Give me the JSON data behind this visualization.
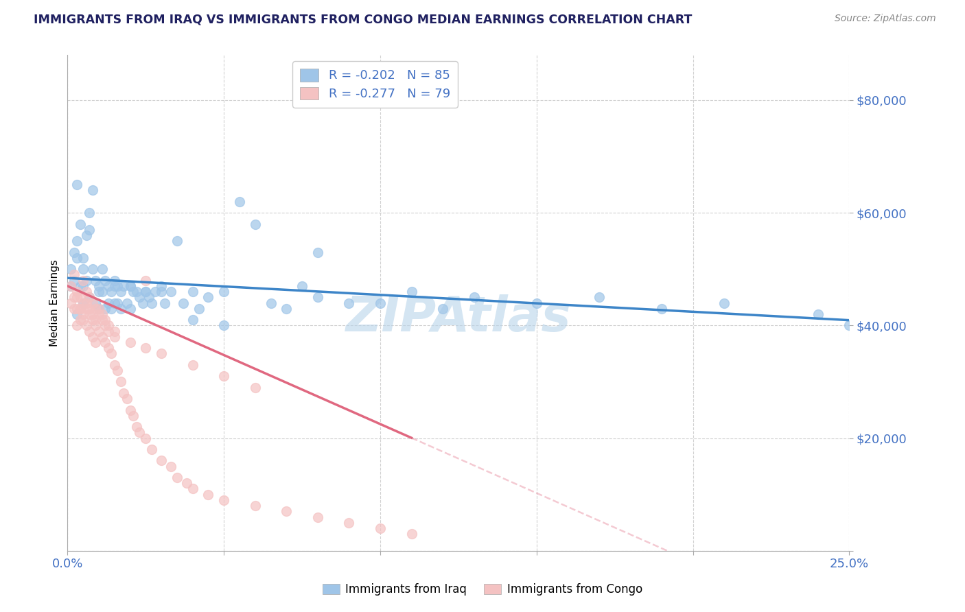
{
  "title": "IMMIGRANTS FROM IRAQ VS IMMIGRANTS FROM CONGO MEDIAN EARNINGS CORRELATION CHART",
  "source": "Source: ZipAtlas.com",
  "ylabel": "Median Earnings",
  "iraq_color": "#9fc5e8",
  "congo_color": "#f4c2c2",
  "iraq_R": -0.202,
  "iraq_N": 85,
  "congo_R": -0.277,
  "congo_N": 79,
  "watermark": "ZIPAtlas",
  "watermark_color": "#b8d4ea",
  "trend_iraq_color": "#3d85c8",
  "trend_congo_color": "#e06880",
  "axis_color": "#4472c4",
  "legend_label_iraq": "Immigrants from Iraq",
  "legend_label_congo": "Immigrants from Congo",
  "xlim": [
    0.0,
    0.25
  ],
  "ylim": [
    0,
    88000
  ],
  "ytick_vals": [
    0,
    20000,
    40000,
    60000,
    80000
  ],
  "ytick_labels": [
    "",
    "$20,000",
    "$40,000",
    "$60,000",
    "$80,000"
  ],
  "xtick_vals": [
    0.0,
    0.05,
    0.1,
    0.15,
    0.2,
    0.25
  ],
  "xtick_labels": [
    "0.0%",
    "",
    "",
    "",
    "",
    "25.0%"
  ],
  "iraq_x": [
    0.001,
    0.001,
    0.002,
    0.002,
    0.003,
    0.003,
    0.003,
    0.004,
    0.004,
    0.005,
    0.005,
    0.005,
    0.006,
    0.006,
    0.007,
    0.007,
    0.008,
    0.008,
    0.009,
    0.009,
    0.01,
    0.01,
    0.011,
    0.011,
    0.012,
    0.012,
    0.013,
    0.013,
    0.014,
    0.014,
    0.015,
    0.015,
    0.016,
    0.016,
    0.017,
    0.017,
    0.018,
    0.019,
    0.02,
    0.02,
    0.021,
    0.022,
    0.023,
    0.024,
    0.025,
    0.026,
    0.027,
    0.028,
    0.03,
    0.031,
    0.033,
    0.035,
    0.037,
    0.04,
    0.042,
    0.045,
    0.05,
    0.055,
    0.06,
    0.065,
    0.07,
    0.075,
    0.08,
    0.09,
    0.1,
    0.11,
    0.12,
    0.13,
    0.15,
    0.17,
    0.19,
    0.21,
    0.24,
    0.25,
    0.003,
    0.005,
    0.007,
    0.01,
    0.015,
    0.02,
    0.025,
    0.03,
    0.04,
    0.05,
    0.08
  ],
  "iraq_y": [
    47000,
    50000,
    53000,
    48000,
    65000,
    55000,
    42000,
    58000,
    47000,
    52000,
    47000,
    44000,
    56000,
    48000,
    60000,
    45000,
    64000,
    50000,
    48000,
    44000,
    47000,
    43000,
    50000,
    46000,
    48000,
    43000,
    47000,
    44000,
    46000,
    43000,
    48000,
    44000,
    47000,
    44000,
    46000,
    43000,
    47000,
    44000,
    47000,
    43000,
    46000,
    46000,
    45000,
    44000,
    46000,
    45000,
    44000,
    46000,
    47000,
    44000,
    46000,
    55000,
    44000,
    46000,
    43000,
    45000,
    46000,
    62000,
    58000,
    44000,
    43000,
    47000,
    45000,
    44000,
    44000,
    46000,
    43000,
    45000,
    44000,
    45000,
    43000,
    44000,
    42000,
    40000,
    52000,
    50000,
    57000,
    46000,
    47000,
    47000,
    46000,
    46000,
    41000,
    40000,
    53000
  ],
  "congo_x": [
    0.001,
    0.001,
    0.002,
    0.002,
    0.002,
    0.003,
    0.003,
    0.003,
    0.004,
    0.004,
    0.004,
    0.005,
    0.005,
    0.005,
    0.006,
    0.006,
    0.006,
    0.007,
    0.007,
    0.007,
    0.008,
    0.008,
    0.008,
    0.009,
    0.009,
    0.009,
    0.01,
    0.01,
    0.011,
    0.011,
    0.012,
    0.012,
    0.013,
    0.013,
    0.014,
    0.015,
    0.015,
    0.016,
    0.017,
    0.018,
    0.019,
    0.02,
    0.021,
    0.022,
    0.023,
    0.025,
    0.027,
    0.03,
    0.033,
    0.035,
    0.038,
    0.04,
    0.045,
    0.05,
    0.06,
    0.07,
    0.08,
    0.09,
    0.1,
    0.11,
    0.003,
    0.004,
    0.005,
    0.006,
    0.007,
    0.008,
    0.009,
    0.01,
    0.011,
    0.012,
    0.013,
    0.015,
    0.02,
    0.025,
    0.03,
    0.04,
    0.05,
    0.06,
    0.025
  ],
  "congo_y": [
    47000,
    44000,
    49000,
    45000,
    43000,
    46000,
    43000,
    40000,
    45000,
    43000,
    41000,
    48000,
    44000,
    41000,
    46000,
    43000,
    40000,
    45000,
    42000,
    39000,
    44000,
    41000,
    38000,
    43000,
    40000,
    37000,
    42000,
    39000,
    41000,
    38000,
    40000,
    37000,
    39000,
    36000,
    35000,
    38000,
    33000,
    32000,
    30000,
    28000,
    27000,
    25000,
    24000,
    22000,
    21000,
    20000,
    18000,
    16000,
    15000,
    13000,
    12000,
    11000,
    10000,
    9000,
    8000,
    7000,
    6000,
    5000,
    4000,
    3000,
    45000,
    43000,
    42000,
    44000,
    43000,
    42000,
    41000,
    43000,
    42000,
    41000,
    40000,
    39000,
    37000,
    36000,
    35000,
    33000,
    31000,
    29000,
    48000
  ]
}
